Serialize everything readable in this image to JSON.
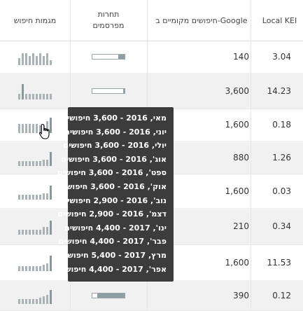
{
  "headers": {
    "kei": "Local KEI",
    "searches": "חיפושים מקומיים ב-Google",
    "competition_line1": "תחרות",
    "competition_line2": "מפרסמים",
    "trend": "מגמות חיפוש"
  },
  "rows": [
    {
      "kei": "3.04",
      "searches": "140",
      "competition": 0.2,
      "trend": [
        0.45,
        0.75,
        0.75,
        0.6,
        0.75,
        0.6,
        0.75,
        0.6,
        0.75,
        0.3
      ]
    },
    {
      "kei": "14.23",
      "searches": "3,600",
      "competition": 0.05,
      "trend": [
        0.35,
        1.0,
        0.35,
        0.35,
        0.35,
        0.35,
        0.35,
        0.35,
        0.35,
        0.35
      ]
    },
    {
      "kei": "0.18",
      "searches": "1,600",
      "competition": 0.0,
      "trend": [
        0.6,
        0.6,
        0.6,
        0.6,
        0.6,
        0.6,
        0.5,
        0.5,
        0.75,
        1.0
      ]
    },
    {
      "kei": "1.26",
      "searches": "880",
      "competition": 0.0,
      "trend": [
        0.3,
        0.3,
        0.3,
        0.3,
        0.3,
        0.3,
        0.3,
        0.4,
        0.4,
        0.9
      ]
    },
    {
      "kei": "0.03",
      "searches": "1,600",
      "competition": 0.0,
      "trend": [
        0.3,
        0.3,
        0.3,
        0.3,
        0.3,
        0.3,
        0.3,
        0.4,
        0.4,
        0.9
      ]
    },
    {
      "kei": "0.34",
      "searches": "210",
      "competition": 0.0,
      "trend": [
        0.3,
        0.3,
        0.3,
        0.3,
        0.3,
        0.3,
        0.3,
        0.5,
        0.5,
        0.9
      ]
    },
    {
      "kei": "11.53",
      "searches": "1,600",
      "competition": 0.0,
      "trend": [
        0.3,
        0.3,
        0.3,
        0.3,
        0.3,
        0.3,
        0.3,
        0.4,
        0.5,
        1.0
      ]
    },
    {
      "kei": "0.12",
      "searches": "390",
      "competition": 0.85,
      "trend": [
        0.3,
        0.3,
        0.3,
        0.3,
        0.3,
        0.3,
        0.4,
        0.5,
        0.6,
        0.9
      ]
    }
  ],
  "tooltip": [
    "מאי, 2016 - 3,600 חיפושים",
    "יוני, 2016 - 3,600 חיפושים",
    "יולי, 2016 - 3,600 חיפושים",
    "אוג', 2016 - 3,600 חיפושים",
    "ספט', 2016 - 3,600 חיפושים",
    "אוק', 2016 - 3,600 חיפושים",
    "נוב', 2016 - 2,900 חיפושים",
    "דצמ', 2016 - 2,900 חיפושים",
    "ינו', 2017 - 4,400 חיפושים",
    "פבר', 2017 - 4,400 חיפושים",
    "מרץ, 2017 - 5,400 חיפושים",
    "אפר', 2017 - 4,400 חיפושים"
  ],
  "colors": {
    "shaded_row": "#f1f1f1",
    "tooltip_bg": "#3c3c3c",
    "bar": "#8f9ea2"
  },
  "cursor_icon": "hand-pointer-icon"
}
